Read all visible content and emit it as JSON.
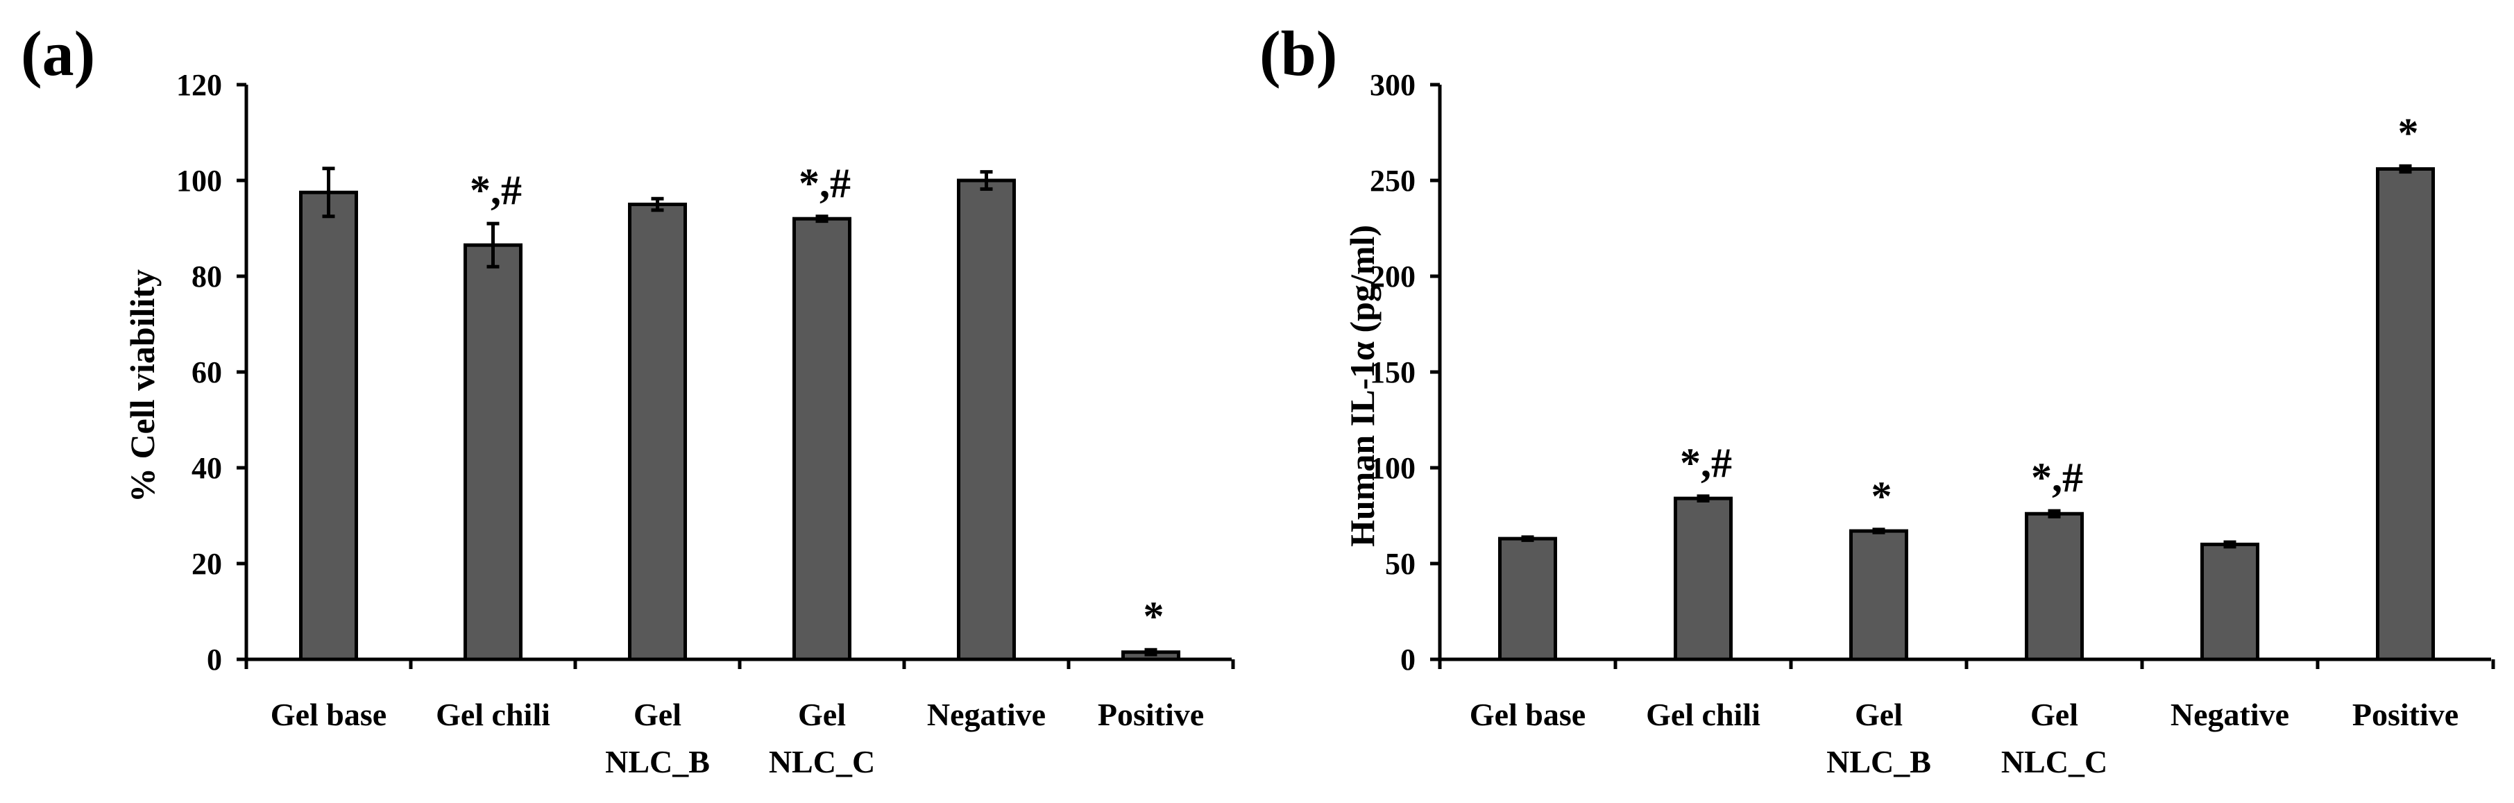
{
  "chart_data": [
    {
      "type": "bar",
      "panel_label": "(a)",
      "title": "",
      "xlabel": "",
      "ylabel": "% Cell viability",
      "ylim": [
        0,
        120
      ],
      "yticks": [
        "0",
        "20",
        "40",
        "60",
        "80",
        "100",
        "120"
      ],
      "categories": [
        {
          "line1": "Gel base",
          "line2": ""
        },
        {
          "line1": "Gel chili",
          "line2": ""
        },
        {
          "line1": "Gel",
          "line2": "NLC_B"
        },
        {
          "line1": "Gel",
          "line2": "NLC_C"
        },
        {
          "line1": "Negative",
          "line2": ""
        },
        {
          "line1": "Positive",
          "line2": ""
        }
      ],
      "values": [
        97.5,
        86.5,
        95,
        92,
        100,
        1.5
      ],
      "errors": [
        5,
        4.5,
        1.2,
        0.5,
        1.8,
        0.5
      ],
      "significance": [
        "",
        "*,#",
        "",
        "*,#",
        "",
        "*"
      ],
      "bar_color": "#595959",
      "grid": false
    },
    {
      "type": "bar",
      "panel_label": "(b)",
      "title": "",
      "xlabel": "",
      "ylabel": "Human IL-1α (pg/ml)",
      "ylim": [
        0,
        300
      ],
      "yticks": [
        "0",
        "50",
        "100",
        "150",
        "200",
        "250",
        "300"
      ],
      "categories": [
        {
          "line1": "Gel base",
          "line2": ""
        },
        {
          "line1": "Gel chili",
          "line2": ""
        },
        {
          "line1": "Gel",
          "line2": "NLC_B"
        },
        {
          "line1": "Gel",
          "line2": "NLC_C"
        },
        {
          "line1": "Negative",
          "line2": ""
        },
        {
          "line1": "Positive",
          "line2": ""
        }
      ],
      "values": [
        63,
        84,
        67,
        76,
        60,
        256
      ],
      "errors": [
        0.8,
        1.2,
        0.8,
        1.5,
        1.2,
        1.5
      ],
      "significance": [
        "",
        "*,#",
        "*",
        "*,#",
        "",
        "*"
      ],
      "bar_color": "#595959",
      "grid": false
    }
  ]
}
